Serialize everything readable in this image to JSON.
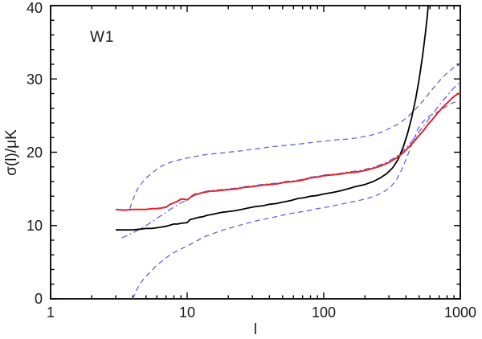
{
  "figure": {
    "background": "#ffffff",
    "frame_color": "#000000",
    "annotation": "W1"
  },
  "chart_data": {
    "type": "line",
    "title": "",
    "annotation": "W1",
    "xlabel": "l",
    "ylabel": "σ(l)/μK",
    "x_scale": "log",
    "y_scale": "linear",
    "xlim": [
      1,
      1000
    ],
    "ylim": [
      0,
      40
    ],
    "grid": false,
    "legend": "none",
    "x_major_ticks": [
      1,
      10,
      100,
      1000
    ],
    "x_tick_labels": [
      "1",
      "10",
      "100",
      "1000"
    ],
    "x_minor_mantissas": [
      2,
      3,
      4,
      5,
      6,
      7,
      8,
      9
    ],
    "y_major_ticks": [
      0,
      10,
      20,
      30,
      40
    ],
    "y_tick_labels": [
      "0",
      "10",
      "20",
      "30",
      "40"
    ],
    "y_minor_step": 2,
    "series": [
      {
        "name": "black-solid",
        "description": "sigma(l) curve rising slowly then steeply, exits top of frame near l=585",
        "color": "#000000",
        "style": "solid",
        "width": 1.8,
        "points": [
          [
            3,
            9.4
          ],
          [
            3.5,
            9.4
          ],
          [
            4,
            9.4
          ],
          [
            4.5,
            9.5
          ],
          [
            5,
            9.6
          ],
          [
            5.5,
            9.6
          ],
          [
            6,
            9.7
          ],
          [
            6.5,
            9.8
          ],
          [
            7,
            9.9
          ],
          [
            8,
            10.2
          ],
          [
            8.5,
            10.2
          ],
          [
            9,
            10.3
          ],
          [
            10,
            10.4
          ],
          [
            10.5,
            10.8
          ],
          [
            11,
            10.9
          ],
          [
            12,
            11.1
          ],
          [
            13,
            11.2
          ],
          [
            14,
            11.4
          ],
          [
            15,
            11.5
          ],
          [
            16,
            11.6
          ],
          [
            18,
            11.8
          ],
          [
            20,
            11.9
          ],
          [
            22,
            12.0
          ],
          [
            25,
            12.2
          ],
          [
            28,
            12.4
          ],
          [
            32,
            12.6
          ],
          [
            36,
            12.7
          ],
          [
            40,
            12.9
          ],
          [
            45,
            13.0
          ],
          [
            50,
            13.2
          ],
          [
            57,
            13.4
          ],
          [
            65,
            13.7
          ],
          [
            72,
            13.8
          ],
          [
            80,
            14.0
          ],
          [
            90,
            14.1
          ],
          [
            100,
            14.3
          ],
          [
            115,
            14.5
          ],
          [
            130,
            14.7
          ],
          [
            150,
            15.0
          ],
          [
            170,
            15.3
          ],
          [
            200,
            15.6
          ],
          [
            230,
            16.0
          ],
          [
            260,
            16.5
          ],
          [
            290,
            17.1
          ],
          [
            320,
            17.9
          ],
          [
            350,
            19.0
          ],
          [
            380,
            20.6
          ],
          [
            410,
            22.5
          ],
          [
            440,
            24.7
          ],
          [
            470,
            27.2
          ],
          [
            500,
            30.0
          ],
          [
            530,
            33.2
          ],
          [
            555,
            36.2
          ],
          [
            575,
            38.8
          ],
          [
            585,
            40.5
          ]
        ]
      },
      {
        "name": "red-solid",
        "description": "red sigma(l) curve, flat near 12 then step near l=8-12, ends near 28 at l=1000",
        "color": "#e02330",
        "style": "solid",
        "width": 2.0,
        "points": [
          [
            3,
            12.2
          ],
          [
            3.5,
            12.1
          ],
          [
            4,
            12.2
          ],
          [
            4.5,
            12.2
          ],
          [
            5,
            12.2
          ],
          [
            5.5,
            12.3
          ],
          [
            6,
            12.3
          ],
          [
            6.5,
            12.4
          ],
          [
            7,
            12.5
          ],
          [
            7.5,
            12.9
          ],
          [
            8,
            13.1
          ],
          [
            8.5,
            13.3
          ],
          [
            9,
            13.6
          ],
          [
            9.5,
            13.6
          ],
          [
            10,
            13.5
          ],
          [
            10.5,
            13.8
          ],
          [
            11,
            14.1
          ],
          [
            11.5,
            14.3
          ],
          [
            12,
            14.3
          ],
          [
            13,
            14.5
          ],
          [
            14,
            14.6
          ],
          [
            15,
            14.7
          ],
          [
            16,
            14.7
          ],
          [
            18,
            14.8
          ],
          [
            20,
            14.9
          ],
          [
            23,
            15.0
          ],
          [
            26,
            15.2
          ],
          [
            30,
            15.3
          ],
          [
            35,
            15.5
          ],
          [
            40,
            15.6
          ],
          [
            46,
            15.7
          ],
          [
            52,
            15.9
          ],
          [
            60,
            16.0
          ],
          [
            70,
            16.2
          ],
          [
            80,
            16.5
          ],
          [
            90,
            16.6
          ],
          [
            100,
            16.8
          ],
          [
            115,
            16.9
          ],
          [
            130,
            17.0
          ],
          [
            150,
            17.2
          ],
          [
            175,
            17.3
          ],
          [
            200,
            17.5
          ],
          [
            230,
            17.8
          ],
          [
            260,
            18.1
          ],
          [
            300,
            18.6
          ],
          [
            340,
            19.2
          ],
          [
            380,
            19.9
          ],
          [
            420,
            20.7
          ],
          [
            460,
            21.5
          ],
          [
            500,
            22.3
          ],
          [
            540,
            23.0
          ],
          [
            580,
            23.8
          ],
          [
            620,
            24.4
          ],
          [
            660,
            25.0
          ],
          [
            700,
            25.6
          ],
          [
            750,
            26.2
          ],
          [
            800,
            26.7
          ],
          [
            850,
            27.2
          ],
          [
            900,
            27.6
          ],
          [
            950,
            27.9
          ],
          [
            1000,
            28.1
          ]
        ]
      },
      {
        "name": "blue-upper-dashed",
        "description": "upper error envelope, dashed blue",
        "color": "#6464d8",
        "style": "dashed",
        "width": 1.3,
        "points": [
          [
            3.8,
            12.3
          ],
          [
            4,
            13.5
          ],
          [
            4.3,
            14.9
          ],
          [
            4.7,
            15.9
          ],
          [
            5,
            16.5
          ],
          [
            5.5,
            17.1
          ],
          [
            6,
            17.7
          ],
          [
            6.5,
            18.1
          ],
          [
            7,
            18.4
          ],
          [
            8,
            18.8
          ],
          [
            9,
            19.0
          ],
          [
            10,
            19.2
          ],
          [
            12,
            19.5
          ],
          [
            14,
            19.7
          ],
          [
            16,
            19.8
          ],
          [
            20,
            20.0
          ],
          [
            25,
            20.2
          ],
          [
            30,
            20.4
          ],
          [
            40,
            20.7
          ],
          [
            50,
            20.9
          ],
          [
            65,
            21.1
          ],
          [
            80,
            21.3
          ],
          [
            100,
            21.5
          ],
          [
            125,
            21.7
          ],
          [
            150,
            21.8
          ],
          [
            180,
            22.0
          ],
          [
            220,
            22.3
          ],
          [
            260,
            22.7
          ],
          [
            300,
            23.2
          ],
          [
            340,
            23.7
          ],
          [
            380,
            24.3
          ],
          [
            420,
            25.0
          ],
          [
            460,
            25.7
          ],
          [
            500,
            26.4
          ],
          [
            550,
            27.3
          ],
          [
            600,
            28.2
          ],
          [
            650,
            29.0
          ],
          [
            700,
            29.7
          ],
          [
            750,
            30.3
          ],
          [
            800,
            30.8
          ],
          [
            850,
            31.2
          ],
          [
            900,
            31.6
          ],
          [
            950,
            31.8
          ],
          [
            1000,
            32.0
          ]
        ]
      },
      {
        "name": "blue-dash-dot",
        "description": "dash-dot blue curve rising from below, hugging the red curve in the middle, ends near 29.5",
        "color": "#6464d8",
        "style": "dashdot",
        "width": 1.3,
        "points": [
          [
            3.3,
            8.3
          ],
          [
            3.6,
            8.6
          ],
          [
            4,
            9.0
          ],
          [
            4.5,
            9.5
          ],
          [
            5,
            10.0
          ],
          [
            5.5,
            10.5
          ],
          [
            6,
            11.0
          ],
          [
            6.5,
            11.4
          ],
          [
            7,
            11.8
          ],
          [
            7.5,
            12.2
          ],
          [
            8,
            12.5
          ],
          [
            8.5,
            12.8
          ],
          [
            9,
            13.1
          ],
          [
            10,
            13.5
          ],
          [
            11,
            14.0
          ],
          [
            12,
            14.3
          ],
          [
            13,
            14.55
          ],
          [
            14,
            14.7
          ],
          [
            15,
            14.8
          ],
          [
            16,
            14.85
          ],
          [
            18,
            14.9
          ],
          [
            20,
            15.0
          ],
          [
            23,
            15.1
          ],
          [
            26,
            15.3
          ],
          [
            30,
            15.4
          ],
          [
            35,
            15.6
          ],
          [
            40,
            15.7
          ],
          [
            46,
            15.8
          ],
          [
            52,
            16.0
          ],
          [
            60,
            16.1
          ],
          [
            70,
            16.3
          ],
          [
            80,
            16.6
          ],
          [
            90,
            16.7
          ],
          [
            100,
            16.9
          ],
          [
            115,
            17.0
          ],
          [
            130,
            17.1
          ],
          [
            150,
            17.3
          ],
          [
            175,
            17.45
          ],
          [
            200,
            17.65
          ],
          [
            230,
            17.95
          ],
          [
            260,
            18.3
          ],
          [
            300,
            18.8
          ],
          [
            340,
            19.4
          ],
          [
            380,
            20.2
          ],
          [
            420,
            21.0
          ],
          [
            460,
            21.9
          ],
          [
            500,
            22.8
          ],
          [
            540,
            23.6
          ],
          [
            580,
            24.4
          ],
          [
            620,
            25.1
          ],
          [
            660,
            25.8
          ],
          [
            700,
            26.4
          ],
          [
            750,
            27.1
          ],
          [
            800,
            27.7
          ],
          [
            850,
            28.3
          ],
          [
            900,
            28.8
          ],
          [
            950,
            29.2
          ],
          [
            1000,
            29.6
          ]
        ]
      },
      {
        "name": "blue-lower-dashed",
        "description": "lower error envelope, dashed blue, rises from 0 at l=4, ends near 27",
        "color": "#6464d8",
        "style": "dashed",
        "width": 1.3,
        "points": [
          [
            4,
            0
          ],
          [
            4.2,
            1.0
          ],
          [
            4.5,
            2.0
          ],
          [
            4.8,
            2.7
          ],
          [
            5.2,
            3.4
          ],
          [
            5.6,
            4.0
          ],
          [
            6,
            4.6
          ],
          [
            6.5,
            5.1
          ],
          [
            7,
            5.6
          ],
          [
            7.5,
            6.0
          ],
          [
            8,
            6.3
          ],
          [
            9,
            6.8
          ],
          [
            10,
            7.2
          ],
          [
            11,
            7.6
          ],
          [
            12,
            8.0
          ],
          [
            13.5,
            8.5
          ],
          [
            15,
            8.8
          ],
          [
            17,
            9.2
          ],
          [
            20,
            9.6
          ],
          [
            23,
            9.9
          ],
          [
            26,
            10.2
          ],
          [
            30,
            10.5
          ],
          [
            35,
            10.8
          ],
          [
            40,
            11.0
          ],
          [
            47,
            11.3
          ],
          [
            55,
            11.6
          ],
          [
            65,
            11.8
          ],
          [
            75,
            12.0
          ],
          [
            90,
            12.3
          ],
          [
            105,
            12.5
          ],
          [
            125,
            12.8
          ],
          [
            150,
            13.1
          ],
          [
            180,
            13.4
          ],
          [
            210,
            13.7
          ],
          [
            250,
            14.2
          ],
          [
            280,
            14.7
          ],
          [
            310,
            15.3
          ],
          [
            340,
            16.2
          ],
          [
            370,
            17.5
          ],
          [
            400,
            19.0
          ],
          [
            430,
            20.5
          ],
          [
            460,
            21.9
          ],
          [
            490,
            23.2
          ],
          [
            520,
            23.9
          ],
          [
            560,
            24.6
          ],
          [
            600,
            25.0
          ],
          [
            660,
            25.4
          ],
          [
            700,
            25.6
          ],
          [
            750,
            26.0
          ],
          [
            800,
            26.3
          ],
          [
            850,
            26.6
          ],
          [
            900,
            26.8
          ],
          [
            950,
            26.9
          ],
          [
            1000,
            27.0
          ]
        ]
      }
    ]
  }
}
